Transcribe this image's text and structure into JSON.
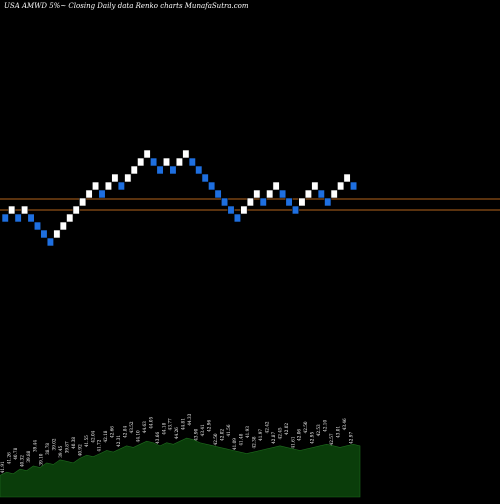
{
  "chart_data": {
    "type": "renko",
    "title": "USA AMWD 5%~ Closing Daily data Renko charts MunafaSutra.com",
    "ticker": "USA AMWD",
    "box_size": "5%",
    "colors": {
      "up": "#ffffff",
      "down": "#1e6fe0",
      "reference_line": "#b5651d",
      "volume": "#0a3d0a",
      "labels": "#ffffff"
    },
    "grid": false,
    "reference_lines": [
      {
        "name": "",
        "level": 35.0
      },
      {
        "name": "",
        "level": 38.0
      }
    ],
    "bricks": [
      {
        "c": -0.6,
        "up": false
      },
      {
        "c": -0.2,
        "up": true
      },
      {
        "c": -0.6,
        "up": false
      },
      {
        "c": -0.2,
        "up": true
      },
      {
        "c": -0.6,
        "up": false
      },
      {
        "c": -1.0,
        "up": false
      },
      {
        "c": -1.4,
        "up": false
      },
      {
        "c": -1.8,
        "up": false
      },
      {
        "c": -1.4,
        "up": true
      },
      {
        "c": -1.0,
        "up": true
      },
      {
        "c": -0.6,
        "up": true
      },
      {
        "c": -0.2,
        "up": true
      },
      {
        "c": 0.2,
        "up": true
      },
      {
        "c": 0.6,
        "up": true
      },
      {
        "c": 1.0,
        "up": true
      },
      {
        "c": 0.6,
        "up": false
      },
      {
        "c": 1.0,
        "up": true
      },
      {
        "c": 1.4,
        "up": true
      },
      {
        "c": 1.0,
        "up": false
      },
      {
        "c": 1.4,
        "up": true
      },
      {
        "c": 1.8,
        "up": true
      },
      {
        "c": 2.2,
        "up": true
      },
      {
        "c": 2.6,
        "up": true
      },
      {
        "c": 2.2,
        "up": false
      },
      {
        "c": 1.8,
        "up": false
      },
      {
        "c": 2.2,
        "up": true
      },
      {
        "c": 1.8,
        "up": false
      },
      {
        "c": 2.2,
        "up": true
      },
      {
        "c": 2.6,
        "up": true
      },
      {
        "c": 2.2,
        "up": false
      },
      {
        "c": 1.8,
        "up": false
      },
      {
        "c": 1.4,
        "up": false
      },
      {
        "c": 1.0,
        "up": false
      },
      {
        "c": 0.6,
        "up": false
      },
      {
        "c": 0.2,
        "up": false
      },
      {
        "c": -0.2,
        "up": false
      },
      {
        "c": -0.6,
        "up": false
      },
      {
        "c": -0.2,
        "up": true
      },
      {
        "c": 0.2,
        "up": true
      },
      {
        "c": 0.6,
        "up": true
      },
      {
        "c": 0.2,
        "up": false
      },
      {
        "c": 0.6,
        "up": true
      },
      {
        "c": 1.0,
        "up": true
      },
      {
        "c": 0.6,
        "up": false
      },
      {
        "c": 0.2,
        "up": false
      },
      {
        "c": -0.2,
        "up": false
      },
      {
        "c": 0.2,
        "up": true
      },
      {
        "c": 0.6,
        "up": true
      },
      {
        "c": 1.0,
        "up": true
      },
      {
        "c": 0.6,
        "up": false
      },
      {
        "c": 0.2,
        "up": false
      },
      {
        "c": 0.6,
        "up": true
      },
      {
        "c": 1.0,
        "up": true
      },
      {
        "c": 1.4,
        "up": true
      },
      {
        "c": 1.0,
        "up": false
      }
    ],
    "volume": [
      14,
      16,
      15,
      18,
      17,
      20,
      19,
      22,
      21,
      24,
      23,
      22,
      25,
      27,
      26,
      28,
      30,
      29,
      31,
      33,
      32,
      34,
      36,
      35,
      33,
      35,
      34,
      36,
      38,
      37,
      35,
      34,
      33,
      32,
      31,
      30,
      29,
      28,
      29,
      30,
      31,
      32,
      33,
      32,
      31,
      30,
      31,
      32,
      33,
      34,
      33,
      32,
      33,
      34,
      33
    ],
    "brick_labels": [
      "41.91",
      "41.26",
      "40.78",
      "40.32",
      "39.88",
      "39.44",
      "39.10",
      "38.78",
      "39.02",
      "39.45",
      "39.87",
      "40.38",
      "40.92",
      "41.55",
      "42.04",
      "41.72",
      "42.18",
      "42.66",
      "42.31",
      "42.84",
      "43.52",
      "44.10",
      "44.63",
      "44.05",
      "43.66",
      "44.18",
      "43.77",
      "44.26",
      "44.81",
      "44.33",
      "43.90",
      "43.41",
      "42.96",
      "42.50",
      "42.02",
      "41.56",
      "41.09",
      "41.48",
      "41.93",
      "42.38",
      "41.97",
      "42.42",
      "42.87",
      "42.45",
      "42.02",
      "41.61",
      "42.06",
      "42.50",
      "42.95",
      "42.53",
      "42.10",
      "42.57",
      "43.01",
      "43.46",
      "42.97"
    ]
  }
}
